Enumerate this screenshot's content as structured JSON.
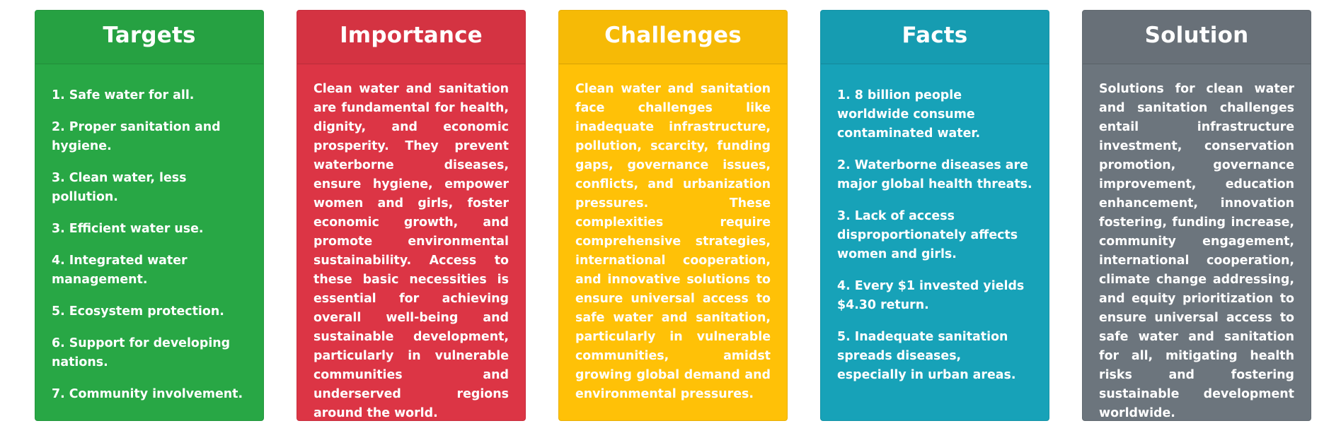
{
  "colors": {
    "targets": "#28a745",
    "importance": "#dc3545",
    "challenges": "#ffc107",
    "facts": "#17a2b8",
    "solution": "#6c757d",
    "text": "#ffffff"
  },
  "targets": {
    "title": "Targets",
    "items": [
      "1. Safe water for all.",
      "2. Proper sanitation and hygiene.",
      "3. Clean water, less pollution.",
      "3. Efficient water use.",
      "4. Integrated water management.",
      "5. Ecosystem protection.",
      "6. Support for developing nations.",
      "7. Community involvement."
    ]
  },
  "importance": {
    "title": "Importance",
    "text": "Clean water and sanitation are fundamental for health, dignity, and economic prosperity. They prevent waterborne diseases, ensure hygiene, empower women and girls, foster economic growth, and promote environmental sustainability. Access to these basic necessities is essential for achieving overall well-being and sustainable development, particularly in vulnerable communities and underserved regions around the world."
  },
  "challenges": {
    "title": "Challenges",
    "text": "Clean water and sanitation face challenges like inadequate infrastructure, pollution, scarcity, funding gaps, governance issues, conflicts, and urbanization pressures. These complexities require comprehensive strategies, international cooperation, and innovative solutions to ensure universal access to safe water and sanitation, particularly in vulnerable communities, amidst growing global demand and environmental pressures."
  },
  "facts": {
    "title": "Facts",
    "items": [
      "1. 8 billion people worldwide consume contaminated water.",
      "2. Waterborne diseases are major global health threats.",
      "3. Lack of access disproportionately affects women and girls.",
      "4. Every $1 invested yields $4.30 return.",
      "5. Inadequate sanitation spreads diseases, especially in urban areas."
    ]
  },
  "solution": {
    "title": "Solution",
    "text": "Solutions for clean water and sanitation challenges entail infrastructure investment, conservation promotion, governance improvement, education enhancement, innovation fostering, funding increase, community engagement, international cooperation, climate change addressing, and equity prioritization to ensure universal access to safe water and sanitation for all, mitigating health risks and fostering sustainable development worldwide."
  }
}
